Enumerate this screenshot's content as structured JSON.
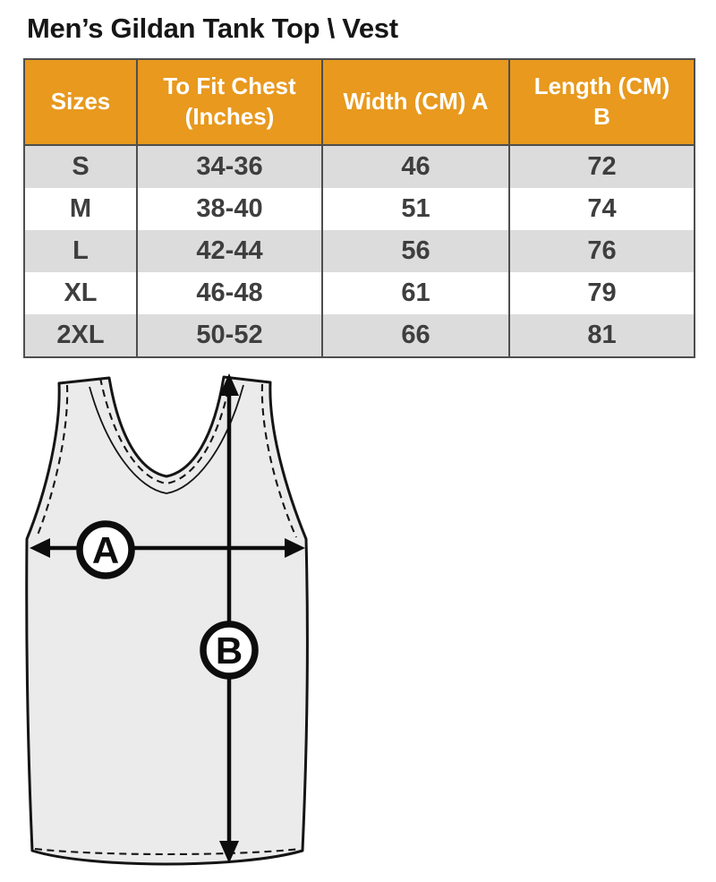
{
  "title": "Men’s Gildan Tank Top \\ Vest",
  "table": {
    "headers": [
      "Sizes",
      "To Fit Chest\n(Inches)",
      "Width (CM) A",
      "Length  (CM)\nB"
    ],
    "rows": [
      [
        "S",
        "34-36",
        "46",
        "72"
      ],
      [
        "M",
        "38-40",
        "51",
        "74"
      ],
      [
        "L",
        "42-44",
        "56",
        "76"
      ],
      [
        "XL",
        "46-48",
        "61",
        "79"
      ],
      [
        "2XL",
        "50-52",
        "66",
        "81"
      ]
    ]
  },
  "diagram": {
    "width_label": "A",
    "length_label": "B"
  },
  "colors": {
    "header_bg": "#E8991E",
    "header_text": "#FFFFFF",
    "row_alt_bg": "#DCDCDC",
    "row_bg": "#FFFFFF",
    "cell_text": "#3E3E3E",
    "table_border": "#4E4E4E",
    "title_text": "#161616",
    "garment_fill": "#EBEBEB",
    "line_color": "#151515"
  },
  "chart_data": {
    "type": "table",
    "title": "Men’s Gildan Tank Top \\ Vest",
    "columns": [
      "Sizes",
      "To Fit Chest (Inches)",
      "Width (CM) A",
      "Length (CM) B"
    ],
    "rows": [
      [
        "S",
        "34-36",
        46,
        72
      ],
      [
        "M",
        "38-40",
        51,
        74
      ],
      [
        "L",
        "42-44",
        56,
        76
      ],
      [
        "XL",
        "46-48",
        61,
        79
      ],
      [
        "2XL",
        "50-52",
        66,
        81
      ]
    ]
  }
}
